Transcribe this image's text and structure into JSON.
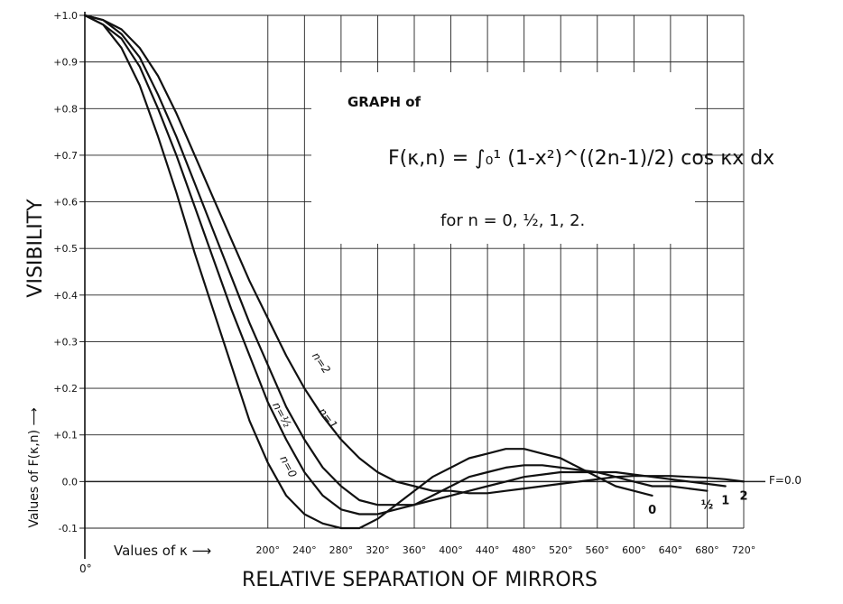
{
  "chart_data": {
    "type": "line",
    "title": "GRAPH of",
    "formula": "F(κ,n) = ∫₀¹ (1-x²)^((2n-1)/2) cos κx dx",
    "subtitle": "for n = 0, ½, 1, 2.",
    "ylabel": "VISIBILITY",
    "ylabel2": "Values of F(κ,n) ⟶",
    "xlabel": "RELATIVE SEPARATION OF MIRRORS",
    "xlabel2": "Values of κ ⟶",
    "x_origin_label": "0°",
    "zero_line_label": "F=0.0",
    "xlim": [
      0,
      720
    ],
    "ylim": [
      -0.1,
      1.0
    ],
    "x_ticks": [
      200,
      240,
      280,
      320,
      360,
      400,
      440,
      480,
      520,
      560,
      600,
      640,
      680,
      720
    ],
    "x_tick_labels": [
      "200°",
      "240°",
      "280°",
      "320°",
      "360°",
      "400°",
      "440°",
      "480°",
      "520°",
      "560°",
      "600°",
      "640°",
      "680°",
      "720°"
    ],
    "y_ticks": [
      1.0,
      0.9,
      0.8,
      0.7,
      0.6,
      0.5,
      0.4,
      0.3,
      0.2,
      0.1,
      0.0,
      -0.1
    ],
    "y_tick_labels": [
      "+1.0",
      "+0.9",
      "+0.8",
      "+0.7",
      "+0.6",
      "+0.5",
      "+0.4",
      "+0.3",
      "+0.2",
      "+0.1",
      "0.0",
      "-0.1"
    ],
    "grid": true,
    "series": [
      {
        "name": "n=0",
        "end_label": "0",
        "x": [
          0,
          20,
          40,
          60,
          80,
          100,
          120,
          140,
          160,
          180,
          200,
          220,
          240,
          260,
          280,
          300,
          320,
          340,
          360,
          380,
          400,
          420,
          440,
          460,
          480,
          500,
          520,
          540,
          560,
          580,
          600,
          620
        ],
        "values": [
          1.0,
          0.98,
          0.93,
          0.85,
          0.74,
          0.62,
          0.49,
          0.37,
          0.25,
          0.13,
          0.04,
          -0.03,
          -0.07,
          -0.09,
          -0.1,
          -0.1,
          -0.08,
          -0.05,
          -0.02,
          0.01,
          0.03,
          0.05,
          0.06,
          0.07,
          0.07,
          0.06,
          0.05,
          0.03,
          0.01,
          -0.01,
          -0.02,
          -0.03
        ]
      },
      {
        "name": "n=½",
        "end_label": "½",
        "x": [
          0,
          20,
          40,
          60,
          80,
          100,
          120,
          140,
          160,
          180,
          200,
          220,
          240,
          260,
          280,
          300,
          320,
          340,
          360,
          380,
          400,
          420,
          440,
          460,
          480,
          500,
          520,
          540,
          560,
          580,
          600,
          620,
          640,
          660,
          680
        ],
        "values": [
          1.0,
          0.98,
          0.95,
          0.89,
          0.8,
          0.7,
          0.59,
          0.48,
          0.37,
          0.27,
          0.17,
          0.09,
          0.02,
          -0.03,
          -0.06,
          -0.07,
          -0.07,
          -0.06,
          -0.05,
          -0.03,
          -0.01,
          0.01,
          0.02,
          0.03,
          0.035,
          0.035,
          0.03,
          0.025,
          0.02,
          0.01,
          0.0,
          -0.01,
          -0.01,
          -0.015,
          -0.02
        ]
      },
      {
        "name": "n=1",
        "end_label": "1",
        "x": [
          0,
          20,
          40,
          60,
          80,
          100,
          120,
          140,
          160,
          180,
          200,
          220,
          240,
          260,
          280,
          300,
          320,
          340,
          360,
          380,
          400,
          420,
          440,
          460,
          480,
          500,
          520,
          540,
          560,
          580,
          600,
          620,
          640,
          660,
          680,
          700
        ],
        "values": [
          1.0,
          0.99,
          0.96,
          0.91,
          0.83,
          0.74,
          0.64,
          0.54,
          0.44,
          0.34,
          0.25,
          0.16,
          0.09,
          0.03,
          -0.01,
          -0.04,
          -0.05,
          -0.05,
          -0.05,
          -0.04,
          -0.03,
          -0.02,
          -0.01,
          0.0,
          0.01,
          0.015,
          0.02,
          0.02,
          0.02,
          0.02,
          0.015,
          0.01,
          0.005,
          0.0,
          -0.005,
          -0.01
        ]
      },
      {
        "name": "n=2",
        "end_label": "2",
        "x": [
          0,
          20,
          40,
          60,
          80,
          100,
          120,
          140,
          160,
          180,
          200,
          220,
          240,
          260,
          280,
          300,
          320,
          340,
          360,
          380,
          400,
          420,
          440,
          460,
          480,
          500,
          520,
          540,
          560,
          580,
          600,
          620,
          640,
          660,
          680,
          700,
          720
        ],
        "values": [
          1.0,
          0.99,
          0.97,
          0.93,
          0.87,
          0.79,
          0.7,
          0.61,
          0.52,
          0.43,
          0.35,
          0.27,
          0.2,
          0.14,
          0.09,
          0.05,
          0.02,
          0.0,
          -0.01,
          -0.02,
          -0.02,
          -0.025,
          -0.025,
          -0.02,
          -0.015,
          -0.01,
          -0.005,
          0.0,
          0.005,
          0.01,
          0.012,
          0.012,
          0.012,
          0.01,
          0.008,
          0.005,
          0.0
        ]
      }
    ],
    "curve_labels": [
      {
        "series": 3,
        "text": "n=2",
        "at_x": 248,
        "at_y": 0.27,
        "angle": 55
      },
      {
        "series": 2,
        "text": "n=1",
        "at_x": 255,
        "at_y": 0.15,
        "angle": 52
      },
      {
        "series": 1,
        "text": "n=½",
        "at_x": 205,
        "at_y": 0.165,
        "angle": 62
      },
      {
        "series": 0,
        "text": "n=0",
        "at_x": 213,
        "at_y": 0.05,
        "angle": 62
      }
    ]
  }
}
